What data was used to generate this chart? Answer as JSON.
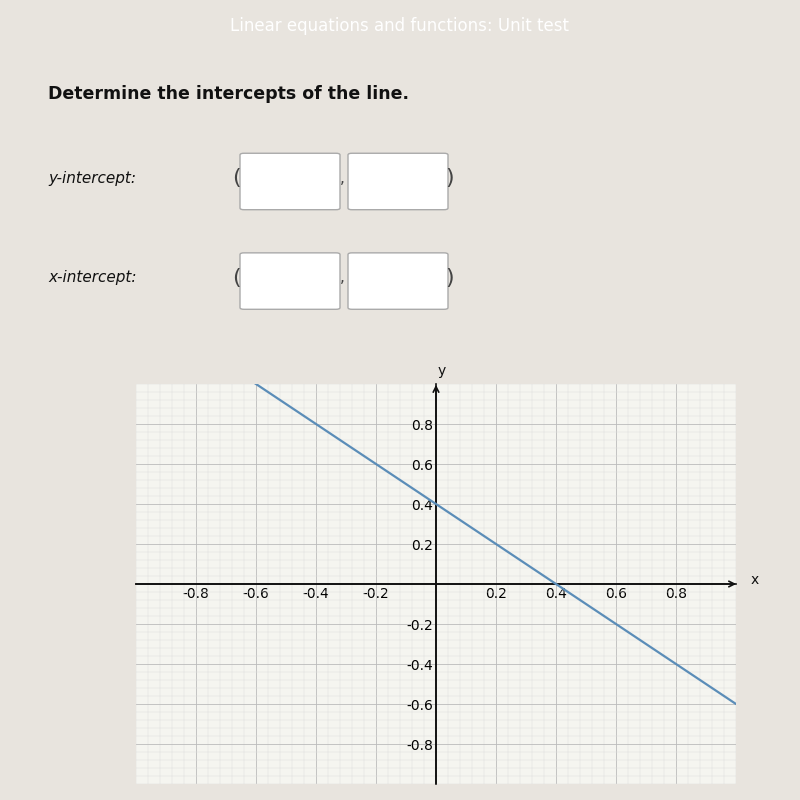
{
  "title_bar_text": "Linear equations and functions: Unit test",
  "title_bar_color": "#4a6fa5",
  "question_text": "Determine the intercepts of the line.",
  "y_intercept_label": "y-intercept:",
  "x_intercept_label": "x-intercept:",
  "line_y_intercept": 0.4,
  "line_x_intercept": 0.4,
  "line_color": "#5b8db8",
  "line_width": 1.6,
  "xlim": [
    -1.0,
    1.0
  ],
  "ylim": [
    -1.0,
    1.0
  ],
  "x_ticks": [
    -0.8,
    -0.6,
    -0.4,
    -0.2,
    0.2,
    0.4,
    0.6,
    0.8
  ],
  "y_ticks": [
    -0.8,
    -0.6,
    -0.4,
    -0.2,
    0.2,
    0.4,
    0.6,
    0.8
  ],
  "grid_color": "#bbbbbb",
  "minor_grid_color": "#dddddd",
  "bg_color": "#e8e4de",
  "axis_color": "#111111",
  "tick_label_color": "#222222",
  "tick_fontsize": 8.5,
  "slope": -1.0,
  "graph_bg": "#f5f5f0"
}
